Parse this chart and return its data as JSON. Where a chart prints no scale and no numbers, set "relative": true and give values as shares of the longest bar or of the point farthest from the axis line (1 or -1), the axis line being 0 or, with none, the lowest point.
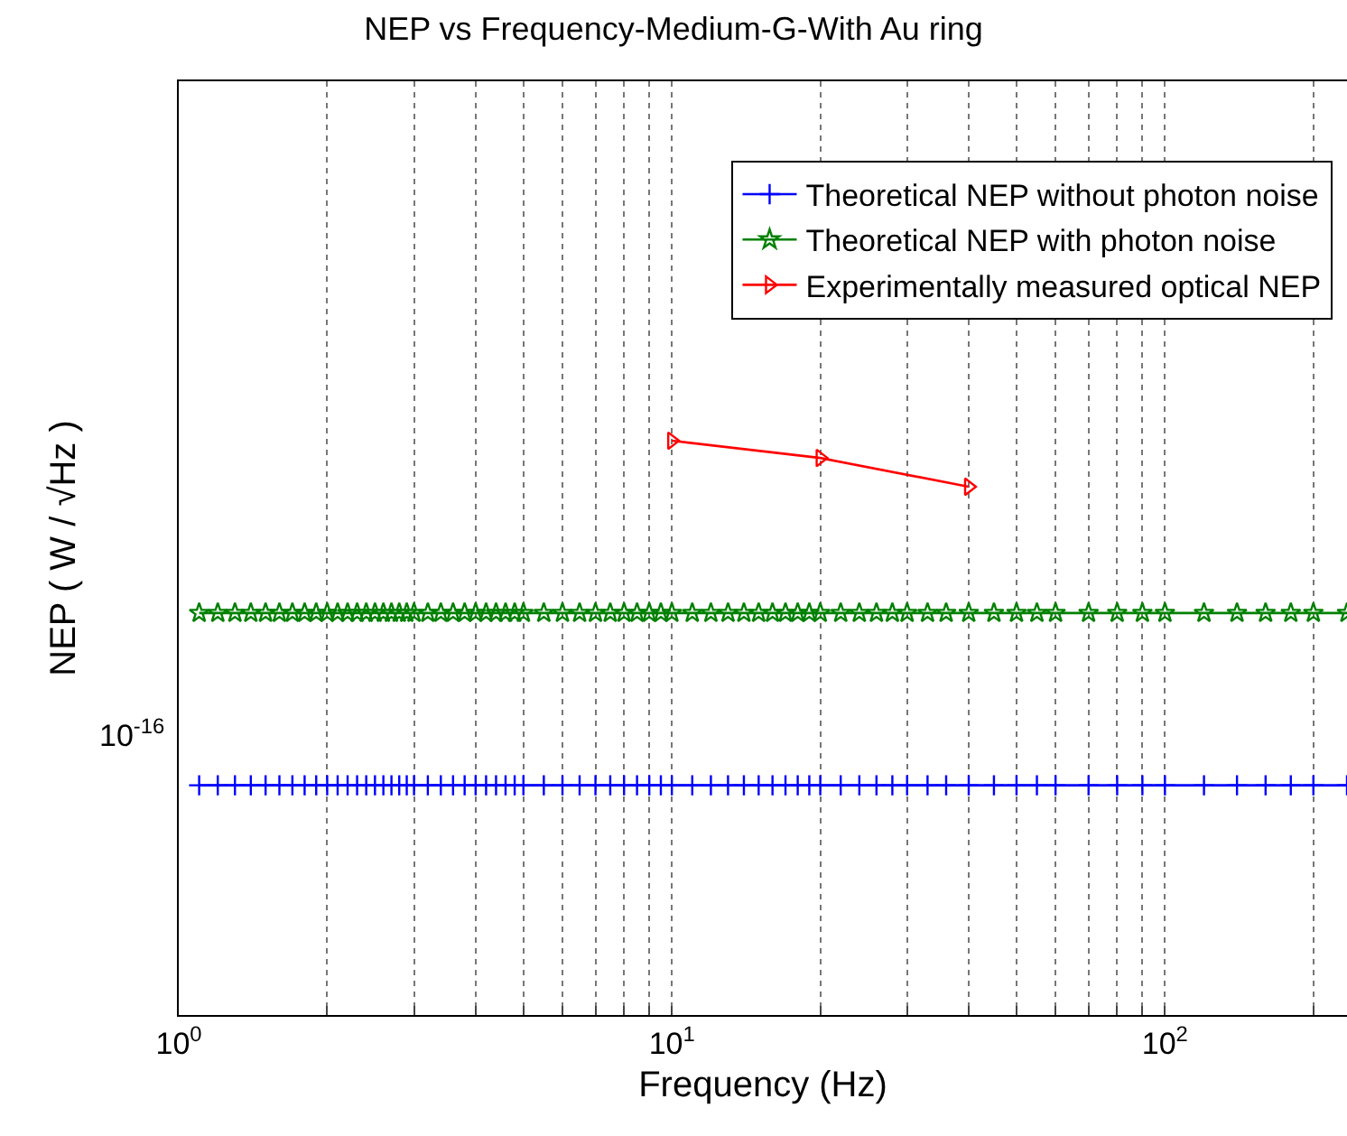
{
  "chart_data": {
    "type": "line",
    "title": "NEP vs Frequency-Medium-G-With Au ring",
    "xlabel": "Frequency (Hz)",
    "ylabel": "NEP ( W / √Hz )",
    "relative": true,
    "log": "x",
    "grid": "x",
    "legend": "top right",
    "line_style": "solid",
    "annotations": [
      "10$^{-16}$"
    ],
    "xlim": [
      1,
      234
    ],
    "xticks": [
      {
        "value": 1,
        "label": "10$^{0}$"
      },
      {
        "value": 2,
        "label": null
      },
      {
        "value": 3,
        "label": null
      },
      {
        "value": 4,
        "label": null
      },
      {
        "value": 5,
        "label": null
      },
      {
        "value": 6,
        "label": null
      },
      {
        "value": 7,
        "label": null
      },
      {
        "value": 8,
        "label": null
      },
      {
        "value": 9,
        "label": null
      },
      {
        "value": 10,
        "label": "10$^{1}$"
      },
      {
        "value": 20,
        "label": null
      },
      {
        "value": 30,
        "label": null
      },
      {
        "value": 40,
        "label": null
      },
      {
        "value": 50,
        "label": null
      },
      {
        "value": 60,
        "label": null
      },
      {
        "value": 70,
        "label": null
      },
      {
        "value": 80,
        "label": null
      },
      {
        "value": 90,
        "label": null
      },
      {
        "value": 100,
        "label": "10$^{2}$"
      },
      {
        "value": 200,
        "label": null
      }
    ],
    "series": [
      {
        "name": "Theoretical NEP without photon noise",
        "color": "#0000ff",
        "marker": "cross",
        "x": [
          1.1,
          1.2,
          1.3,
          1.4,
          1.5,
          1.6,
          1.7,
          1.8,
          1.9,
          2,
          2.1,
          2.2,
          2.3,
          2.4,
          2.5,
          2.6,
          2.7,
          2.8,
          2.9,
          3,
          3.2,
          3.4,
          3.6,
          3.8,
          4,
          4.2,
          4.4,
          4.6,
          4.8,
          5,
          5.5,
          6,
          6.5,
          7,
          7.5,
          8,
          8.5,
          9,
          9.5,
          10,
          11,
          12,
          13,
          14,
          15,
          16,
          17,
          18,
          19,
          20,
          22,
          24,
          26,
          28,
          30,
          33,
          36,
          40,
          45,
          50,
          55,
          60,
          70,
          80,
          90,
          100,
          120,
          140,
          160,
          180,
          200,
          234
        ],
        "values": [
          0.4,
          0.4,
          0.4,
          0.4,
          0.4,
          0.4,
          0.4,
          0.4,
          0.4,
          0.4,
          0.4,
          0.4,
          0.4,
          0.4,
          0.4,
          0.4,
          0.4,
          0.4,
          0.4,
          0.4,
          0.4,
          0.4,
          0.4,
          0.4,
          0.4,
          0.4,
          0.4,
          0.4,
          0.4,
          0.4,
          0.4,
          0.4,
          0.4,
          0.4,
          0.4,
          0.4,
          0.4,
          0.4,
          0.4,
          0.4,
          0.4,
          0.4,
          0.4,
          0.4,
          0.4,
          0.4,
          0.4,
          0.4,
          0.4,
          0.4,
          0.4,
          0.4,
          0.4,
          0.4,
          0.4,
          0.4,
          0.4,
          0.4,
          0.4,
          0.4,
          0.4,
          0.4,
          0.4,
          0.4,
          0.4,
          0.4,
          0.4,
          0.4,
          0.4,
          0.4,
          0.4,
          0.4
        ]
      },
      {
        "name": "Theoretical NEP with photon noise",
        "color": "#008000",
        "marker": "star",
        "x": [
          1.1,
          1.2,
          1.3,
          1.4,
          1.5,
          1.6,
          1.7,
          1.8,
          1.9,
          2,
          2.1,
          2.2,
          2.3,
          2.4,
          2.5,
          2.6,
          2.7,
          2.8,
          2.9,
          3,
          3.2,
          3.4,
          3.6,
          3.8,
          4,
          4.2,
          4.4,
          4.6,
          4.8,
          5,
          5.5,
          6,
          6.5,
          7,
          7.5,
          8,
          8.5,
          9,
          9.5,
          10,
          11,
          12,
          13,
          14,
          15,
          16,
          17,
          18,
          19,
          20,
          22,
          24,
          26,
          28,
          30,
          33,
          36,
          40,
          45,
          50,
          55,
          60,
          70,
          80,
          90,
          100,
          120,
          140,
          160,
          180,
          200,
          234
        ],
        "values": [
          0.7,
          0.7,
          0.7,
          0.7,
          0.7,
          0.7,
          0.7,
          0.7,
          0.7,
          0.7,
          0.7,
          0.7,
          0.7,
          0.7,
          0.7,
          0.7,
          0.7,
          0.7,
          0.7,
          0.7,
          0.7,
          0.7,
          0.7,
          0.7,
          0.7,
          0.7,
          0.7,
          0.7,
          0.7,
          0.7,
          0.7,
          0.7,
          0.7,
          0.7,
          0.7,
          0.7,
          0.7,
          0.7,
          0.7,
          0.7,
          0.7,
          0.7,
          0.7,
          0.7,
          0.7,
          0.7,
          0.7,
          0.7,
          0.7,
          0.7,
          0.7,
          0.7,
          0.7,
          0.7,
          0.7,
          0.7,
          0.7,
          0.7,
          0.7,
          0.7,
          0.7,
          0.7,
          0.7,
          0.7,
          0.7,
          0.7,
          0.7,
          0.7,
          0.7,
          0.7,
          0.7,
          0.7
        ]
      },
      {
        "name": "Experimentally measured optical NEP",
        "color": "#ff0000",
        "marker": "triangle",
        "x": [
          10,
          20,
          40
        ],
        "values": [
          1,
          0.97,
          0.92
        ]
      }
    ]
  }
}
